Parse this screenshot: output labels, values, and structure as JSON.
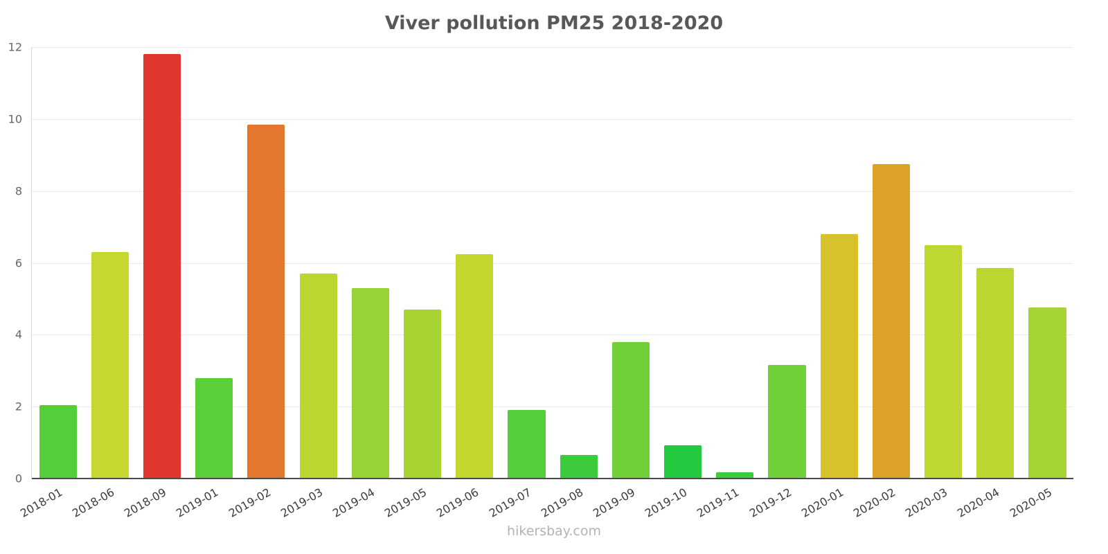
{
  "title": "Viver pollution PM25 2018-2020",
  "footer": "hikersbay.com",
  "chart_data": {
    "type": "bar",
    "title": "Viver pollution PM25 2018-2020",
    "xlabel": "",
    "ylabel": "",
    "ylim": [
      0,
      12
    ],
    "yticks": [
      0,
      2,
      4,
      6,
      8,
      10,
      12
    ],
    "grid": true,
    "legend": false,
    "categories": [
      "2018-01",
      "2018-06",
      "2018-09",
      "2019-01",
      "2019-02",
      "2019-03",
      "2019-04",
      "2019-05",
      "2019-06",
      "2019-07",
      "2019-08",
      "2019-09",
      "2019-10",
      "2019-11",
      "2019-12",
      "2020-01",
      "2020-02",
      "2020-03",
      "2020-04",
      "2020-05"
    ],
    "values": [
      2.05,
      6.3,
      11.8,
      2.8,
      9.85,
      5.7,
      5.3,
      4.7,
      6.25,
      1.9,
      0.65,
      3.8,
      0.93,
      0.17,
      3.15,
      6.8,
      8.75,
      6.5,
      5.85,
      4.75
    ],
    "colors": [
      "#56ce3a",
      "#c6d830",
      "#e0362f",
      "#5bcf3a",
      "#e2772d",
      "#bcd631",
      "#98d234",
      "#a8d431",
      "#c3d730",
      "#54ce3a",
      "#3ccb3d",
      "#70d037",
      "#23c93f",
      "#3ccb3d",
      "#70d037",
      "#d8c22b",
      "#dfa128",
      "#bfd731",
      "#bcd631",
      "#a6d432"
    ]
  }
}
